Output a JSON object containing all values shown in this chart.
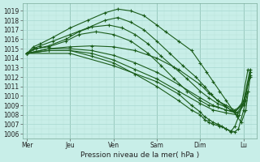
{
  "bg_color": "#c8eee8",
  "plot_bg_color": "#c8eee8",
  "line_color": "#1a5c1a",
  "grid_color": "#b0ddd5",
  "xlabel": "Pression niveau de la mer( hPa )",
  "ylim": [
    1005.5,
    1019.8
  ],
  "yticks": [
    1006,
    1007,
    1008,
    1009,
    1010,
    1011,
    1012,
    1013,
    1014,
    1015,
    1016,
    1017,
    1018,
    1019
  ],
  "xtick_labels": [
    "Mer",
    "Jeu",
    "Ven",
    "Sam",
    "Dim",
    "Lu"
  ],
  "xtick_positions": [
    0,
    1,
    2,
    3,
    4,
    5
  ],
  "xlim": [
    -0.1,
    5.3
  ],
  "vline_color": "#7aaa99",
  "series": [
    {
      "x": [
        0.0,
        0.15,
        0.3,
        0.6,
        1.0,
        1.4,
        1.8,
        2.1,
        2.4,
        2.7,
        3.0,
        3.2,
        3.5,
        3.8,
        4.0,
        4.15,
        4.3,
        4.45,
        4.6,
        4.75,
        4.85,
        4.95,
        5.05,
        5.15
      ],
      "y": [
        1014.5,
        1015.2,
        1015.5,
        1016.2,
        1017.2,
        1018.0,
        1018.8,
        1019.2,
        1019.0,
        1018.5,
        1017.5,
        1016.8,
        1015.8,
        1014.8,
        1013.5,
        1012.5,
        1011.5,
        1010.5,
        1009.5,
        1008.5,
        1007.8,
        1007.2,
        1008.5,
        1012.0
      ]
    },
    {
      "x": [
        0.0,
        0.15,
        0.3,
        0.6,
        1.0,
        1.4,
        1.8,
        2.1,
        2.4,
        2.7,
        3.0,
        3.3,
        3.6,
        3.9,
        4.1,
        4.25,
        4.4,
        4.55,
        4.7,
        4.85,
        5.0,
        5.15
      ],
      "y": [
        1014.5,
        1015.0,
        1015.3,
        1015.8,
        1016.5,
        1017.2,
        1018.0,
        1018.3,
        1017.8,
        1017.0,
        1015.8,
        1014.5,
        1013.2,
        1012.0,
        1011.0,
        1010.2,
        1009.5,
        1009.0,
        1008.5,
        1008.0,
        1009.0,
        1012.2
      ]
    },
    {
      "x": [
        0.0,
        0.2,
        0.5,
        0.9,
        1.2,
        1.5,
        1.9,
        2.2,
        2.5,
        2.8,
        3.1,
        3.4,
        3.7,
        4.0,
        4.2,
        4.4,
        4.6,
        4.8,
        5.0,
        5.15
      ],
      "y": [
        1014.5,
        1015.0,
        1015.3,
        1016.0,
        1016.8,
        1017.3,
        1017.5,
        1017.2,
        1016.5,
        1015.5,
        1014.2,
        1013.0,
        1011.8,
        1010.5,
        1009.8,
        1009.2,
        1008.8,
        1008.3,
        1009.2,
        1012.5
      ]
    },
    {
      "x": [
        0.0,
        0.2,
        0.5,
        0.9,
        1.2,
        1.6,
        2.0,
        2.4,
        2.8,
        3.1,
        3.4,
        3.7,
        4.0,
        4.2,
        4.4,
        4.6,
        4.8,
        5.0,
        5.15
      ],
      "y": [
        1014.5,
        1015.0,
        1015.2,
        1015.8,
        1016.5,
        1016.8,
        1016.5,
        1015.8,
        1014.5,
        1013.2,
        1011.8,
        1010.5,
        1009.5,
        1009.0,
        1008.8,
        1008.5,
        1008.3,
        1009.5,
        1012.8
      ]
    },
    {
      "x": [
        0.0,
        0.5,
        1.0,
        1.5,
        2.0,
        2.5,
        3.0,
        3.5,
        4.0,
        4.2,
        4.4,
        4.6,
        4.8,
        4.95,
        5.1
      ],
      "y": [
        1014.5,
        1015.0,
        1015.2,
        1015.3,
        1015.2,
        1014.8,
        1014.0,
        1012.8,
        1011.2,
        1010.3,
        1009.5,
        1009.0,
        1008.5,
        1009.0,
        1012.8
      ]
    },
    {
      "x": [
        0.0,
        0.5,
        1.0,
        1.5,
        2.0,
        2.5,
        3.0,
        3.5,
        4.0,
        4.3,
        4.6,
        4.85,
        5.05
      ],
      "y": [
        1014.5,
        1015.0,
        1015.0,
        1014.8,
        1014.3,
        1013.5,
        1012.5,
        1011.2,
        1009.8,
        1009.0,
        1008.5,
        1008.2,
        1009.5
      ]
    },
    {
      "x": [
        0.0,
        0.5,
        1.0,
        1.5,
        2.0,
        2.5,
        3.0,
        3.5,
        4.0,
        4.3,
        4.6,
        4.85
      ],
      "y": [
        1014.5,
        1014.8,
        1014.8,
        1014.5,
        1013.8,
        1012.8,
        1011.8,
        1010.5,
        1009.2,
        1008.5,
        1008.2,
        1008.0
      ]
    },
    {
      "x": [
        0.0,
        0.5,
        1.0,
        1.5,
        2.0,
        2.5,
        3.0,
        3.5,
        3.8,
        4.0,
        4.1,
        4.2,
        4.3,
        4.45,
        4.6,
        4.7,
        4.8,
        4.9,
        5.0,
        5.1
      ],
      "y": [
        1014.5,
        1014.8,
        1014.8,
        1014.2,
        1013.5,
        1012.3,
        1011.0,
        1009.5,
        1008.5,
        1008.0,
        1007.5,
        1007.2,
        1007.0,
        1006.8,
        1006.5,
        1006.2,
        1006.8,
        1008.0,
        1009.5,
        1010.5
      ]
    },
    {
      "x": [
        0.0,
        1.0,
        2.0,
        3.0,
        3.5,
        3.8,
        4.0,
        4.1,
        4.2,
        4.3,
        4.4,
        4.5,
        4.6,
        4.7,
        4.8,
        4.88,
        5.0,
        5.1
      ],
      "y": [
        1014.5,
        1014.5,
        1013.2,
        1011.5,
        1010.2,
        1009.0,
        1008.3,
        1007.8,
        1007.5,
        1007.2,
        1007.0,
        1006.8,
        1006.5,
        1006.3,
        1006.2,
        1006.5,
        1008.5,
        1010.5
      ]
    }
  ]
}
